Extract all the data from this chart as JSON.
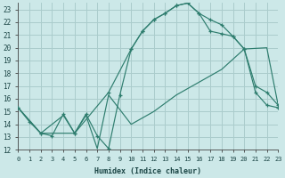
{
  "xlabel": "Humidex (Indice chaleur)",
  "bg_color": "#cce8e8",
  "grid_color": "#aacccc",
  "line_color": "#2e7d6e",
  "xlim": [
    0,
    23
  ],
  "ylim": [
    12,
    23.5
  ],
  "xticks": [
    0,
    1,
    2,
    3,
    4,
    5,
    6,
    7,
    8,
    9,
    10,
    11,
    12,
    13,
    14,
    15,
    16,
    17,
    18,
    19,
    20,
    21,
    22,
    23
  ],
  "yticks": [
    12,
    13,
    14,
    15,
    16,
    17,
    18,
    19,
    20,
    21,
    22,
    23
  ],
  "line1_x": [
    0,
    1,
    2,
    3,
    4,
    5,
    6,
    7,
    8,
    9,
    10,
    11,
    12,
    13,
    14,
    15,
    16,
    17,
    18,
    19,
    20,
    21,
    22,
    23
  ],
  "line1_y": [
    15.3,
    14.2,
    13.3,
    13.1,
    14.8,
    13.3,
    14.8,
    13.1,
    12.1,
    16.3,
    19.9,
    21.3,
    22.2,
    22.7,
    23.3,
    23.5,
    22.7,
    22.2,
    21.8,
    20.9,
    19.9,
    16.5,
    15.5,
    15.3
  ],
  "line1_markers": [
    0,
    1,
    2,
    3,
    4,
    5,
    6,
    7,
    8,
    9,
    10,
    11,
    12,
    13,
    14,
    15,
    16,
    17,
    18,
    19,
    20,
    21,
    22,
    23
  ],
  "line2_x": [
    0,
    2,
    5,
    8,
    10,
    11,
    12,
    13,
    14,
    15,
    16,
    17,
    18,
    19,
    20,
    21,
    22,
    23
  ],
  "line2_y": [
    15.3,
    13.3,
    13.3,
    16.5,
    19.9,
    21.3,
    22.2,
    22.7,
    23.3,
    23.5,
    22.7,
    21.3,
    21.1,
    20.9,
    19.9,
    17.0,
    16.5,
    15.5
  ],
  "line3_x": [
    0,
    2,
    4,
    5,
    6,
    7,
    8,
    10,
    12,
    14,
    16,
    18,
    20,
    22,
    23
  ],
  "line3_y": [
    15.3,
    13.3,
    14.7,
    13.3,
    14.7,
    12.1,
    16.3,
    14.0,
    15.0,
    16.3,
    17.3,
    18.3,
    19.9,
    20.0,
    15.5
  ]
}
